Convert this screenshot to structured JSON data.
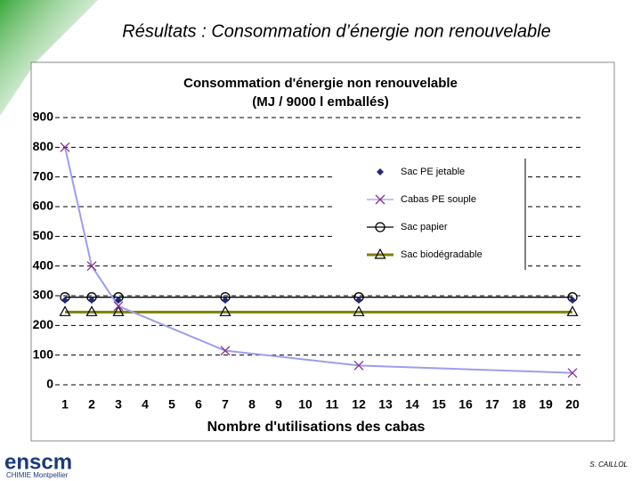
{
  "slide_title": "Résultats : Consommation d’énergie non renouvelable",
  "logo": {
    "name": "enscm",
    "subtitle": "CHIMIE Montpellier"
  },
  "author": "S. CAILLOL",
  "chart_data": {
    "type": "line",
    "title": "Consommation d'énergie non renouvelable",
    "subtitle": "(MJ / 9000 l emballés)",
    "x_label": "Nombre d'utilisations des cabas",
    "x": [
      1,
      2,
      3,
      7,
      12,
      20
    ],
    "xlim": [
      1,
      20
    ],
    "xticks": [
      1,
      2,
      3,
      4,
      5,
      6,
      7,
      8,
      9,
      10,
      11,
      12,
      13,
      14,
      15,
      16,
      17,
      18,
      19,
      20
    ],
    "ylim": [
      0,
      900
    ],
    "yticks": [
      0,
      100,
      200,
      300,
      400,
      500,
      600,
      700,
      800,
      900
    ],
    "grid": true,
    "legend": "right",
    "series": [
      {
        "name": "Sac PE jetable",
        "color": "#1f2a7a",
        "marker_color": "#1f2a7a",
        "marker": "diamond",
        "line": false,
        "values": [
          285,
          285,
          285,
          285,
          285,
          285
        ]
      },
      {
        "name": "Cabas PE souple",
        "color": "#9d9df0",
        "marker_color": "#8a2f8a",
        "marker": "x",
        "line": true,
        "values": [
          800,
          400,
          265,
          115,
          65,
          40
        ]
      },
      {
        "name": "Sac papier",
        "color": "#000000",
        "marker_color": "#000000",
        "marker": "circle",
        "line": true,
        "values": [
          295,
          295,
          295,
          295,
          295,
          295
        ]
      },
      {
        "name": "Sac biodégradable",
        "color": "#808000",
        "marker_color": "#000000",
        "marker": "triangle",
        "line": true,
        "values": [
          245,
          245,
          245,
          245,
          245,
          245
        ]
      }
    ]
  }
}
